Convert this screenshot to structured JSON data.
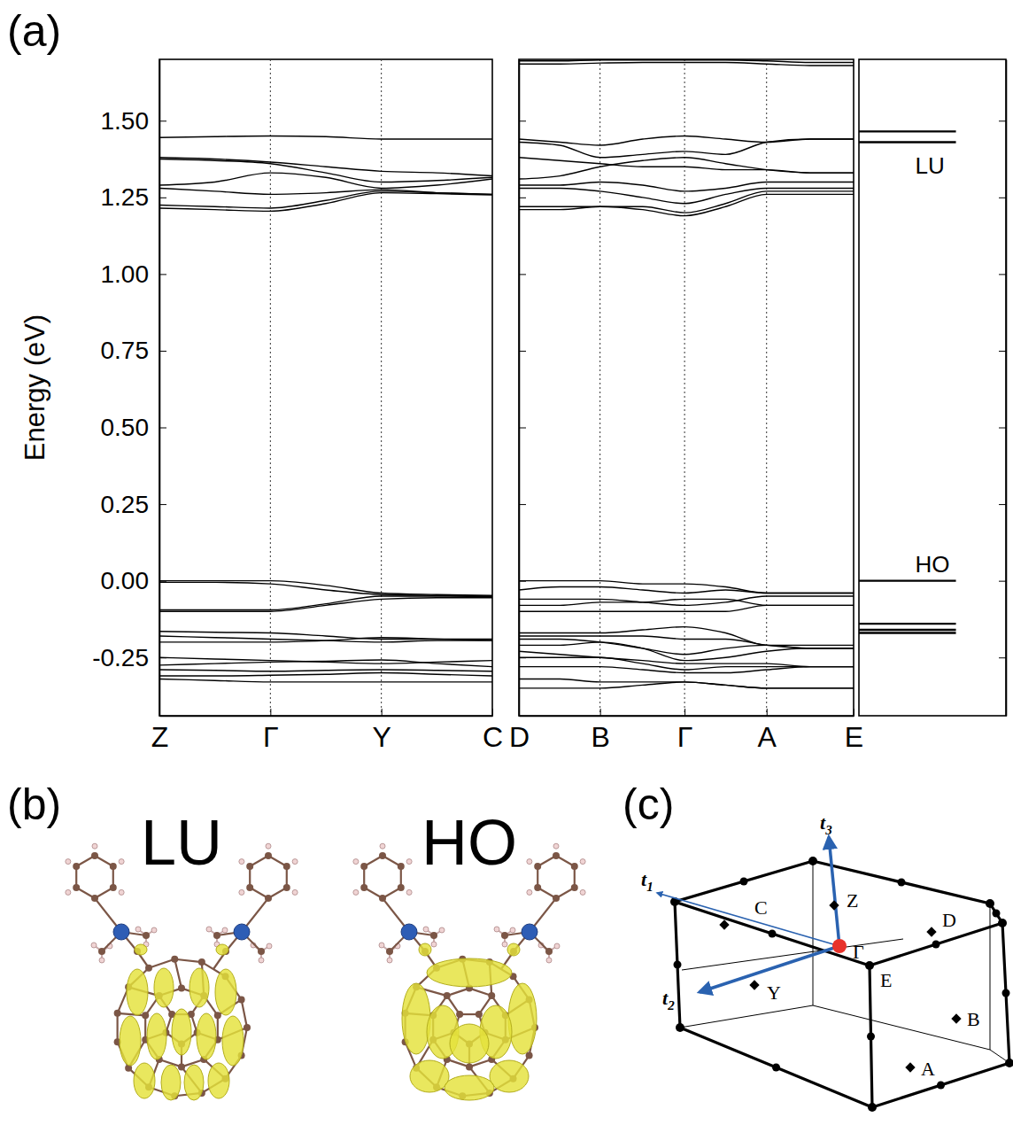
{
  "chart_data": [
    {
      "type": "line",
      "ylabel": "Energy (eV)",
      "color": "#000000",
      "line_style": "solid",
      "grid": "x",
      "x": [
        0,
        0.5,
        1,
        1.5,
        2,
        2.5,
        3
      ],
      "xlim": [
        0,
        3
      ],
      "xticks": [
        {
          "value": 0,
          "label": "Z"
        },
        {
          "value": 1,
          "label": "Γ"
        },
        {
          "value": 2,
          "label": "Y"
        },
        {
          "value": 3,
          "label": "C"
        }
      ],
      "ylim": [
        -0.44,
        1.7
      ],
      "yticks": [
        {
          "value": -0.25,
          "label": "-0.25"
        },
        {
          "value": 0,
          "label": "0.00"
        },
        {
          "value": 0.25,
          "label": "0.25"
        },
        {
          "value": 0.5,
          "label": "0.50"
        },
        {
          "value": 0.75,
          "label": "0.75"
        },
        {
          "value": 1,
          "label": "1.00"
        },
        {
          "value": 1.25,
          "label": "1.25"
        },
        {
          "value": 1.5,
          "label": "1.50"
        }
      ],
      "series": [
        {
          "values": [
            1.445,
            1.448,
            1.45,
            1.448,
            1.44,
            1.44,
            1.44
          ]
        },
        {
          "values": [
            1.38,
            1.375,
            1.365,
            1.35,
            1.335,
            1.33,
            1.32
          ]
        },
        {
          "values": [
            1.375,
            1.37,
            1.36,
            1.33,
            1.3,
            1.305,
            1.315
          ]
        },
        {
          "values": [
            1.29,
            1.3,
            1.33,
            1.315,
            1.28,
            1.29,
            1.31
          ]
        },
        {
          "values": [
            1.28,
            1.27,
            1.26,
            1.265,
            1.275,
            1.265,
            1.26
          ]
        },
        {
          "values": [
            1.225,
            1.22,
            1.215,
            1.24,
            1.27,
            1.265,
            1.26
          ]
        },
        {
          "values": [
            1.215,
            1.21,
            1.205,
            1.23,
            1.265,
            1.262,
            1.258
          ]
        },
        {
          "values": [
            0.0,
            0.0,
            0.0,
            -0.015,
            -0.04,
            -0.045,
            -0.048
          ]
        },
        {
          "values": [
            -0.005,
            -0.005,
            -0.01,
            -0.03,
            -0.045,
            -0.048,
            -0.05
          ]
        },
        {
          "values": [
            -0.095,
            -0.095,
            -0.095,
            -0.075,
            -0.05,
            -0.05,
            -0.052
          ]
        },
        {
          "values": [
            -0.1,
            -0.1,
            -0.1,
            -0.08,
            -0.06,
            -0.055,
            -0.055
          ]
        },
        {
          "values": [
            -0.165,
            -0.168,
            -0.17,
            -0.18,
            -0.19,
            -0.19,
            -0.19
          ]
        },
        {
          "values": [
            -0.18,
            -0.185,
            -0.19,
            -0.195,
            -0.2,
            -0.195,
            -0.195
          ]
        },
        {
          "values": [
            -0.2,
            -0.2,
            -0.2,
            -0.195,
            -0.185,
            -0.19,
            -0.195
          ]
        },
        {
          "values": [
            -0.25,
            -0.255,
            -0.26,
            -0.265,
            -0.27,
            -0.265,
            -0.26
          ]
        },
        {
          "values": [
            -0.275,
            -0.27,
            -0.265,
            -0.262,
            -0.258,
            -0.27,
            -0.28
          ]
        },
        {
          "values": [
            -0.29,
            -0.292,
            -0.295,
            -0.292,
            -0.29,
            -0.292,
            -0.295
          ]
        },
        {
          "values": [
            -0.31,
            -0.31,
            -0.308,
            -0.305,
            -0.3,
            -0.305,
            -0.31
          ]
        },
        {
          "values": [
            -0.32,
            -0.325,
            -0.33,
            -0.33,
            -0.33,
            -0.33,
            -0.33
          ]
        }
      ]
    },
    {
      "type": "line",
      "color": "#000000",
      "line_style": "solid",
      "grid": "x",
      "tick_labels": "x",
      "x": [
        0,
        0.49,
        0.97,
        1.48,
        1.98,
        2.47,
        2.96,
        3.48,
        4
      ],
      "xlim": [
        0,
        4
      ],
      "xticks": [
        {
          "value": 0,
          "label": "D"
        },
        {
          "value": 0.97,
          "label": "B"
        },
        {
          "value": 1.98,
          "label": "Γ"
        },
        {
          "value": 2.96,
          "label": "A"
        },
        {
          "value": 4,
          "label": "E"
        }
      ],
      "ylim": [
        -0.44,
        1.7
      ],
      "yticks": [
        {
          "value": -0.25,
          "label": "-0.25"
        },
        {
          "value": 0,
          "label": "0.00"
        },
        {
          "value": 0.25,
          "label": "0.25"
        },
        {
          "value": 0.5,
          "label": "0.50"
        },
        {
          "value": 0.75,
          "label": "0.75"
        },
        {
          "value": 1,
          "label": "1.00"
        },
        {
          "value": 1.25,
          "label": "1.25"
        },
        {
          "value": 1.5,
          "label": "1.50"
        }
      ],
      "series": [
        {
          "values": [
            1.695,
            1.695,
            1.698,
            1.698,
            1.698,
            1.698,
            1.695,
            1.69,
            1.69
          ]
        },
        {
          "values": [
            1.685,
            1.685,
            1.688,
            1.69,
            1.69,
            1.69,
            1.685,
            1.68,
            1.68
          ]
        },
        {
          "values": [
            1.44,
            1.43,
            1.42,
            1.44,
            1.45,
            1.44,
            1.43,
            1.44,
            1.44
          ]
        },
        {
          "values": [
            1.43,
            1.42,
            1.38,
            1.39,
            1.4,
            1.39,
            1.43,
            1.44,
            1.44
          ]
        },
        {
          "values": [
            1.38,
            1.37,
            1.36,
            1.35,
            1.35,
            1.34,
            1.34,
            1.33,
            1.33
          ]
        },
        {
          "values": [
            1.31,
            1.32,
            1.35,
            1.37,
            1.38,
            1.36,
            1.34,
            1.33,
            1.33
          ]
        },
        {
          "values": [
            1.29,
            1.29,
            1.3,
            1.29,
            1.27,
            1.28,
            1.3,
            1.3,
            1.3
          ]
        },
        {
          "values": [
            1.28,
            1.28,
            1.27,
            1.25,
            1.23,
            1.26,
            1.28,
            1.28,
            1.28
          ]
        },
        {
          "values": [
            1.22,
            1.22,
            1.22,
            1.22,
            1.2,
            1.23,
            1.27,
            1.27,
            1.27
          ]
        },
        {
          "values": [
            1.21,
            1.21,
            1.22,
            1.21,
            1.19,
            1.22,
            1.26,
            1.26,
            1.26
          ]
        },
        {
          "values": [
            0.0,
            0.0,
            0.0,
            -0.01,
            -0.01,
            -0.02,
            -0.04,
            -0.04,
            -0.04
          ]
        },
        {
          "values": [
            -0.03,
            -0.02,
            -0.02,
            -0.03,
            -0.04,
            -0.03,
            -0.04,
            -0.04,
            -0.04
          ]
        },
        {
          "values": [
            -0.06,
            -0.06,
            -0.06,
            -0.07,
            -0.08,
            -0.07,
            -0.05,
            -0.05,
            -0.05
          ]
        },
        {
          "values": [
            -0.08,
            -0.08,
            -0.07,
            -0.07,
            -0.06,
            -0.06,
            -0.08,
            -0.08,
            -0.08
          ]
        },
        {
          "values": [
            -0.1,
            -0.1,
            -0.1,
            -0.1,
            -0.1,
            -0.1,
            -0.08,
            -0.08,
            -0.08
          ]
        },
        {
          "values": [
            -0.17,
            -0.17,
            -0.17,
            -0.16,
            -0.15,
            -0.17,
            -0.21,
            -0.21,
            -0.21
          ]
        },
        {
          "values": [
            -0.18,
            -0.18,
            -0.18,
            -0.18,
            -0.19,
            -0.19,
            -0.21,
            -0.22,
            -0.22
          ]
        },
        {
          "values": [
            -0.19,
            -0.19,
            -0.2,
            -0.22,
            -0.24,
            -0.22,
            -0.21,
            -0.22,
            -0.22
          ]
        },
        {
          "values": [
            -0.21,
            -0.21,
            -0.2,
            -0.22,
            -0.26,
            -0.25,
            -0.23,
            -0.22,
            -0.22
          ]
        },
        {
          "values": [
            -0.23,
            -0.24,
            -0.25,
            -0.26,
            -0.27,
            -0.27,
            -0.27,
            -0.28,
            -0.28
          ]
        },
        {
          "values": [
            -0.25,
            -0.25,
            -0.25,
            -0.27,
            -0.29,
            -0.28,
            -0.28,
            -0.28,
            -0.28
          ]
        },
        {
          "values": [
            -0.28,
            -0.28,
            -0.28,
            -0.29,
            -0.3,
            -0.3,
            -0.29,
            -0.28,
            -0.28
          ]
        },
        {
          "values": [
            -0.32,
            -0.32,
            -0.33,
            -0.33,
            -0.33,
            -0.34,
            -0.35,
            -0.35,
            -0.35
          ]
        },
        {
          "values": [
            -0.35,
            -0.35,
            -0.35,
            -0.34,
            -0.33,
            -0.34,
            -0.35,
            -0.35,
            -0.35
          ]
        }
      ]
    },
    {
      "type": "levels",
      "color": "#000000",
      "tick_labels": false,
      "ylim": [
        -0.44,
        1.7
      ],
      "yticks": [
        {
          "value": -0.25,
          "label": "-0.25"
        },
        {
          "value": 0,
          "label": "0.00"
        },
        {
          "value": 0.25,
          "label": "0.25"
        },
        {
          "value": 0.5,
          "label": "0.50"
        },
        {
          "value": 0.75,
          "label": "0.75"
        },
        {
          "value": 1,
          "label": "1.00"
        },
        {
          "value": 1.25,
          "label": "1.25"
        },
        {
          "value": 1.5,
          "label": "1.50"
        }
      ],
      "levels": [
        1.465,
        1.43,
        0.0,
        -0.14,
        -0.16,
        -0.17
      ],
      "annotations": [
        {
          "text": "LU",
          "y": 1.43
        },
        {
          "text": "HO",
          "y": 0.0
        }
      ]
    }
  ],
  "panel_labels": [
    "(a)",
    "(b)",
    "(c)"
  ],
  "orbitals": [
    {
      "label": "LU"
    },
    {
      "label": "HO"
    }
  ],
  "brillouin_zone": {
    "points": [
      {
        "label": "C"
      },
      {
        "label": "Z"
      },
      {
        "label": "D"
      },
      {
        "label": "E"
      },
      {
        "label": "Y"
      },
      {
        "label": "Γ"
      },
      {
        "label": "A"
      },
      {
        "label": "B"
      }
    ],
    "vectors": [
      {
        "symbol": "t",
        "index": "1"
      },
      {
        "symbol": "t",
        "index": "2"
      },
      {
        "symbol": "t",
        "index": "3"
      }
    ]
  }
}
